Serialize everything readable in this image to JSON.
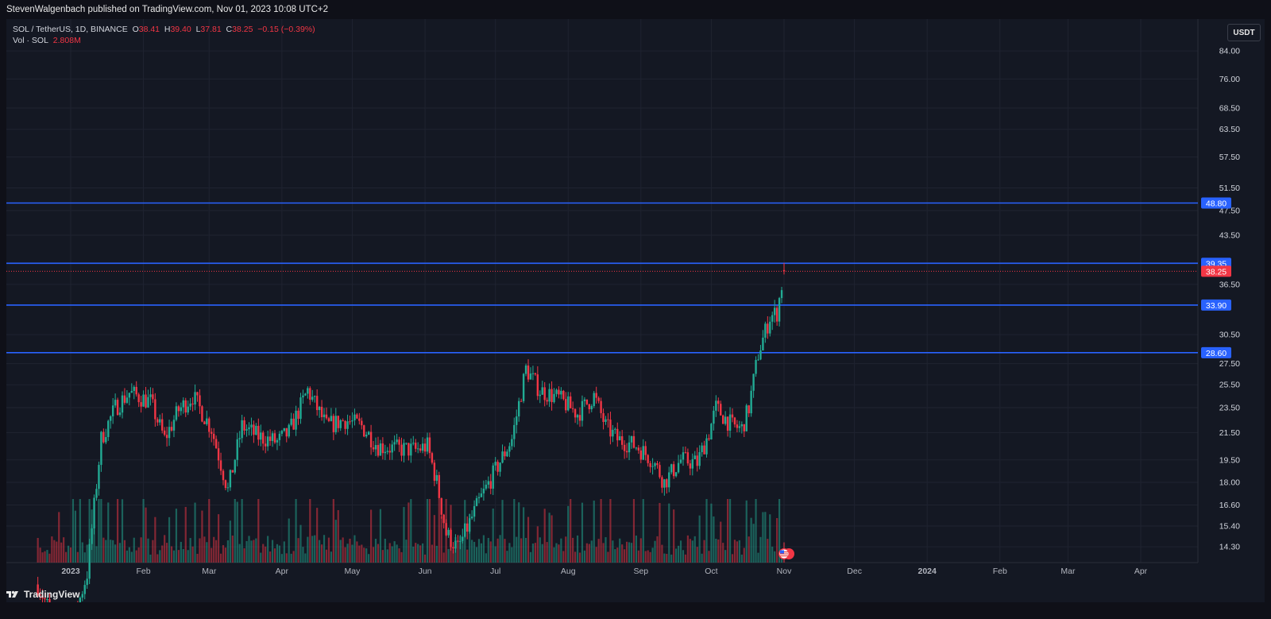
{
  "header": {
    "publisher_text": "StevenWalgenbach published on TradingView.com, Nov 01, 2023 10:08 UTC+2"
  },
  "legend": {
    "symbol": "SOL / TetherUS, 1D, BINANCE",
    "o_label": "O",
    "o_value": "38.41",
    "h_label": "H",
    "h_value": "39.40",
    "l_label": "L",
    "l_value": "37.81",
    "c_label": "C",
    "c_value": "38.25",
    "change": "−0.15 (−0.39%)",
    "vol_label": "Vol · SOL",
    "vol_value": "2.808M"
  },
  "unit_button": "USDT",
  "brand": {
    "name": "TradingView",
    "icon": "tradingview-logo-icon"
  },
  "colors": {
    "up": "#22ab94",
    "down": "#f23645",
    "level": "#2962ff",
    "background": "#141823"
  },
  "chart_data": {
    "type": "candlestick",
    "symbol": "SOL / TetherUS",
    "interval": "1D",
    "exchange": "BINANCE",
    "yaxis_scale": "log",
    "y_ticks": [
      "84.00",
      "76.00",
      "68.50",
      "63.50",
      "57.50",
      "51.50",
      "47.50",
      "43.50",
      "36.50",
      "30.50",
      "27.50",
      "25.50",
      "23.50",
      "21.50",
      "19.50",
      "18.00",
      "16.60",
      "15.40",
      "14.30"
    ],
    "x_ticks": [
      "2023",
      "Feb",
      "Mar",
      "Apr",
      "May",
      "Jun",
      "Jul",
      "Aug",
      "Sep",
      "Oct",
      "Nov",
      "Dec",
      "2024",
      "Feb",
      "Mar",
      "Apr"
    ],
    "horizontal_levels": [
      "48.80",
      "39.35",
      "33.90",
      "28.60"
    ],
    "last_price": "38.25",
    "price_path": [
      {
        "date": "2022-12-18",
        "price": 12.5
      },
      {
        "date": "2022-12-30",
        "price": 10.0
      },
      {
        "date": "2023-01-08",
        "price": 13.0
      },
      {
        "date": "2023-01-14",
        "price": 21.0
      },
      {
        "date": "2023-01-20",
        "price": 23.5
      },
      {
        "date": "2023-01-26",
        "price": 24.8
      },
      {
        "date": "2023-02-04",
        "price": 24.0
      },
      {
        "date": "2023-02-10",
        "price": 21.0
      },
      {
        "date": "2023-02-16",
        "price": 23.3
      },
      {
        "date": "2023-02-22",
        "price": 24.5
      },
      {
        "date": "2023-03-02",
        "price": 21.8
      },
      {
        "date": "2023-03-09",
        "price": 17.5
      },
      {
        "date": "2023-03-15",
        "price": 22.0
      },
      {
        "date": "2023-03-22",
        "price": 21.2
      },
      {
        "date": "2023-03-30",
        "price": 20.8
      },
      {
        "date": "2023-04-04",
        "price": 21.5
      },
      {
        "date": "2023-04-12",
        "price": 25.0
      },
      {
        "date": "2023-04-20",
        "price": 22.0
      },
      {
        "date": "2023-04-28",
        "price": 22.5
      },
      {
        "date": "2023-05-05",
        "price": 22.0
      },
      {
        "date": "2023-05-12",
        "price": 20.5
      },
      {
        "date": "2023-05-20",
        "price": 20.3
      },
      {
        "date": "2023-05-28",
        "price": 20.2
      },
      {
        "date": "2023-06-02",
        "price": 20.5
      },
      {
        "date": "2023-06-06",
        "price": 18.0
      },
      {
        "date": "2023-06-10",
        "price": 15.0
      },
      {
        "date": "2023-06-15",
        "price": 14.2
      },
      {
        "date": "2023-06-24",
        "price": 16.8
      },
      {
        "date": "2023-06-30",
        "price": 18.5
      },
      {
        "date": "2023-07-08",
        "price": 21.0
      },
      {
        "date": "2023-07-14",
        "price": 27.0
      },
      {
        "date": "2023-07-20",
        "price": 25.0
      },
      {
        "date": "2023-07-28",
        "price": 24.3
      },
      {
        "date": "2023-08-05",
        "price": 23.0
      },
      {
        "date": "2023-08-12",
        "price": 24.5
      },
      {
        "date": "2023-08-17",
        "price": 22.0
      },
      {
        "date": "2023-08-22",
        "price": 21.0
      },
      {
        "date": "2023-08-30",
        "price": 20.5
      },
      {
        "date": "2023-09-06",
        "price": 19.5
      },
      {
        "date": "2023-09-11",
        "price": 18.0
      },
      {
        "date": "2023-09-18",
        "price": 19.5
      },
      {
        "date": "2023-09-25",
        "price": 19.3
      },
      {
        "date": "2023-09-30",
        "price": 21.5
      },
      {
        "date": "2023-10-03",
        "price": 23.5
      },
      {
        "date": "2023-10-10",
        "price": 22.0
      },
      {
        "date": "2023-10-14",
        "price": 21.8
      },
      {
        "date": "2023-10-17",
        "price": 23.5
      },
      {
        "date": "2023-10-21",
        "price": 28.5
      },
      {
        "date": "2023-10-26",
        "price": 32.5
      },
      {
        "date": "2023-10-29",
        "price": 33.0
      },
      {
        "date": "2023-11-01",
        "price": 38.25
      }
    ]
  }
}
